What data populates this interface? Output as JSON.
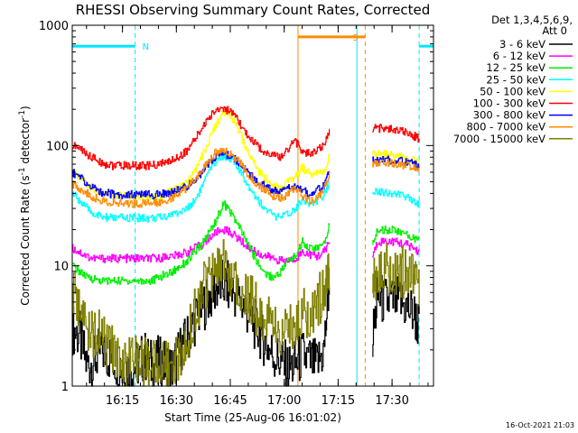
{
  "chart_data": {
    "type": "line",
    "title": "RHESSI Observing Summary Count Rates, Corrected",
    "xlabel": "Start Time (25-Aug-06 16:01:02)",
    "ylabel": "Corrected Count Rate (s⁻¹ detector⁻¹)",
    "ylabel_parts": {
      "main": "Corrected Count Rate (s",
      "exp1": "-1",
      "mid": " detector",
      "exp2": "-1",
      "close": ")"
    },
    "yscale": "log",
    "ylim": [
      1,
      1000
    ],
    "xlim": [
      0,
      100.5
    ],
    "x_unit": "minutes after 16:01:02",
    "x_ticks": [
      {
        "v": 13.97,
        "label": "16:15"
      },
      {
        "v": 28.97,
        "label": "16:30"
      },
      {
        "v": 43.97,
        "label": "16:45"
      },
      {
        "v": 58.97,
        "label": "17:00"
      },
      {
        "v": 73.97,
        "label": "17:15"
      },
      {
        "v": 88.97,
        "label": "17:30"
      }
    ],
    "y_ticks": [
      {
        "v": 1,
        "label": "1"
      },
      {
        "v": 10,
        "label": "10"
      },
      {
        "v": 100,
        "label": "100"
      },
      {
        "v": 1000,
        "label": "1000"
      }
    ],
    "legend_header": [
      "Det 1,3,4,5,6,9,",
      "Att 0"
    ],
    "legend_placement": "right",
    "segments": [
      [
        0,
        71.5
      ],
      [
        83.5,
        96.5
      ]
    ],
    "flags": [
      {
        "label": "N",
        "color": "#00e5ff",
        "x0": 0,
        "x1": 17.5,
        "y": 670
      },
      {
        "label": "",
        "color": "#00e5ff",
        "x0": 96.5,
        "x1": 100.5,
        "y": 670
      },
      {
        "label": "S",
        "color": "#ff8c00",
        "x0": 62.8,
        "x1": 81.5,
        "y": 800
      }
    ],
    "vlines": [
      {
        "x": 17.5,
        "color": "#00e5ff",
        "style": "dashed"
      },
      {
        "x": 79.2,
        "color": "#00e5ff",
        "style": "solid"
      },
      {
        "x": 96.5,
        "color": "#00e5ff",
        "style": "dashed"
      },
      {
        "x": 62.8,
        "color": "#ff8c00",
        "style": "solid"
      },
      {
        "x": 81.5,
        "color": "#ff8c00",
        "style": "dashed"
      }
    ],
    "x": [
      0,
      2,
      4,
      6,
      8,
      10,
      12,
      14,
      16,
      18,
      20,
      22,
      24,
      26,
      28,
      30,
      32,
      34,
      36,
      38,
      40,
      42,
      44,
      46,
      48,
      50,
      52,
      54,
      56,
      58,
      60,
      62,
      64,
      66,
      68,
      70,
      71.5,
      83.5,
      85,
      87,
      89,
      91,
      93,
      95,
      96.5
    ],
    "series": [
      {
        "name": "3 - 6 keV",
        "color": "#000000",
        "values": [
          3,
          2.6,
          1.5,
          1.6,
          2,
          1.8,
          1.6,
          1.5,
          1.4,
          1.5,
          1.8,
          1.5,
          1.6,
          1.5,
          1.4,
          2,
          2.5,
          3.5,
          4.5,
          5.5,
          6.5,
          7,
          6.5,
          5.5,
          4.5,
          3.5,
          2.8,
          2.2,
          1.8,
          1.6,
          1.4,
          1.5,
          1.8,
          1.6,
          1.5,
          2,
          7.5,
          2.5,
          5.5,
          5,
          5,
          5,
          4.5,
          4,
          3
        ]
      },
      {
        "name": "6 - 12 keV",
        "color": "#ff00ff",
        "values": [
          14,
          13,
          12,
          11.5,
          11.5,
          11.5,
          11.5,
          11.5,
          11.5,
          11.5,
          11.5,
          11.5,
          11.5,
          12,
          12,
          12.5,
          13,
          14,
          15,
          17,
          19,
          20,
          19,
          17,
          15,
          13.5,
          12.5,
          12,
          11.5,
          11,
          11,
          11.5,
          13,
          12.5,
          12,
          13,
          16,
          12,
          16,
          16,
          16,
          15.5,
          15,
          14,
          13
        ]
      },
      {
        "name": "12 - 25 keV",
        "color": "#00ee00",
        "values": [
          10,
          9,
          8,
          7.8,
          7.5,
          7.5,
          7.5,
          7.5,
          7.5,
          7.5,
          7.5,
          7.5,
          8,
          8.5,
          9,
          10,
          11,
          13,
          15,
          19,
          24,
          33,
          28,
          22,
          17,
          13,
          10,
          8.5,
          8,
          9,
          11,
          12,
          16,
          14,
          14,
          15,
          22,
          15,
          20,
          20,
          20,
          19,
          18,
          17,
          16
        ]
      },
      {
        "name": "25 - 50 keV",
        "color": "#00ffff",
        "values": [
          40,
          35,
          30,
          27,
          25.5,
          25,
          25,
          25,
          25,
          25,
          25,
          25,
          25,
          26,
          27,
          28,
          30,
          35,
          45,
          60,
          75,
          82,
          78,
          65,
          52,
          42,
          34,
          29,
          26,
          25,
          27,
          30,
          36,
          33,
          34,
          38,
          50,
          42,
          42,
          41,
          40,
          39,
          37,
          35,
          33
        ]
      },
      {
        "name": "50 - 100 keV",
        "color": "#ffff00",
        "values": [
          60,
          55,
          48,
          44,
          41,
          39,
          38,
          38,
          38,
          38,
          38,
          38,
          38,
          40,
          42,
          45,
          50,
          60,
          80,
          110,
          150,
          195,
          180,
          140,
          100,
          75,
          60,
          52,
          47,
          45,
          50,
          55,
          65,
          58,
          58,
          62,
          80,
          85,
          85,
          84,
          83,
          81,
          79,
          75,
          72
        ]
      },
      {
        "name": "100 - 300 keV",
        "color": "#ff0000",
        "values": [
          100,
          95,
          85,
          78,
          72,
          69,
          68,
          68,
          68,
          68,
          68,
          68,
          70,
          72,
          76,
          82,
          92,
          110,
          140,
          170,
          200,
          205,
          190,
          160,
          130,
          110,
          95,
          88,
          82,
          80,
          95,
          110,
          88,
          85,
          90,
          100,
          135,
          140,
          140,
          138,
          135,
          132,
          128,
          120,
          115
        ]
      },
      {
        "name": "300 - 800 keV",
        "color": "#0000ff",
        "values": [
          60,
          55,
          48,
          44,
          41,
          40,
          39,
          39,
          39,
          39,
          39,
          39,
          39,
          40,
          41,
          43,
          46,
          52,
          60,
          72,
          82,
          86,
          82,
          74,
          63,
          55,
          49,
          45,
          42,
          41,
          44,
          46,
          42,
          40,
          42,
          46,
          60,
          75,
          76,
          76,
          75,
          74,
          72,
          70,
          68
        ]
      },
      {
        "name": "800 - 7000 keV",
        "color": "#ff8c00",
        "values": [
          48,
          44,
          40,
          37,
          35,
          34,
          33,
          33,
          33,
          33,
          33,
          33,
          34,
          35,
          37,
          40,
          45,
          53,
          62,
          76,
          88,
          90,
          86,
          76,
          63,
          53,
          46,
          42,
          38,
          36,
          40,
          45,
          38,
          35,
          37,
          43,
          58,
          70,
          72,
          72,
          72,
          70,
          68,
          66,
          62
        ]
      },
      {
        "name": "7000 - 15000 keV",
        "color": "#808000",
        "values": [
          6,
          4.5,
          3,
          2.8,
          2.5,
          2.2,
          1.8,
          1.7,
          1.6,
          1.6,
          1.6,
          1.6,
          1.6,
          1.6,
          1.6,
          1.8,
          2.5,
          4,
          6,
          8,
          9.5,
          10,
          9,
          7.5,
          6,
          5,
          4,
          3.5,
          3,
          2.7,
          3,
          3.5,
          4,
          4,
          5,
          6,
          9,
          7,
          9.5,
          9.5,
          9.5,
          9,
          8.5,
          8,
          7.5
        ]
      }
    ],
    "timestamp": "16-Oct-2021 21:03"
  }
}
